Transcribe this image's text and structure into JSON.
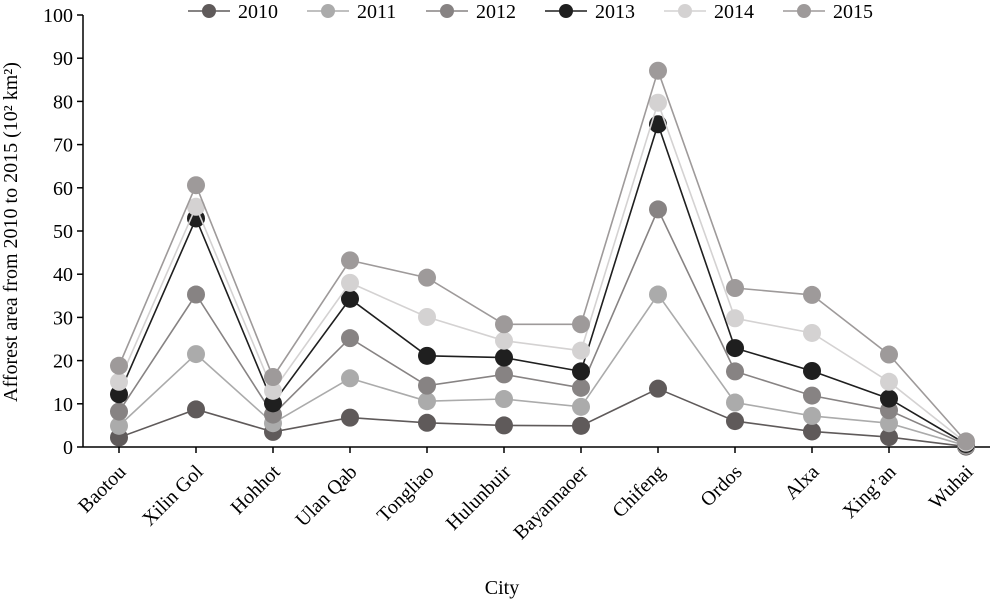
{
  "chart_data": {
    "type": "line",
    "title": "",
    "xlabel": "City",
    "ylabel": "Afforest area from 2010 to 2015 (10² km²)",
    "ylim": [
      0,
      100
    ],
    "yticks": [
      "0",
      "10",
      "20",
      "30",
      "40",
      "50",
      "60",
      "70",
      "80",
      "90",
      "100"
    ],
    "grid": false,
    "legend_position": "top",
    "categories": [
      "Baotou",
      "Xilin Gol",
      "Hohhot",
      "Ulan Qab",
      "Tongliao",
      "Hulunbuir",
      "Bayannaoer",
      "Chifeng",
      "Ordos",
      "Alxa",
      "Xing’an",
      "Wuhai"
    ],
    "series": [
      {
        "name": "2010",
        "color": "#5f5a5a",
        "values": [
          2.2,
          8.7,
          3.5,
          6.8,
          5.6,
          5.0,
          4.9,
          13.5,
          6.0,
          3.6,
          2.3,
          0.1
        ]
      },
      {
        "name": "2011",
        "color": "#ababab",
        "values": [
          4.9,
          21.5,
          5.5,
          15.9,
          10.6,
          11.1,
          9.3,
          35.3,
          10.3,
          7.2,
          5.5,
          0.3
        ]
      },
      {
        "name": "2012",
        "color": "#878383",
        "values": [
          8.2,
          35.3,
          7.5,
          25.2,
          14.2,
          16.8,
          13.7,
          55.0,
          17.5,
          11.9,
          8.5,
          0.5
        ]
      },
      {
        "name": "2013",
        "color": "#1f1f1f",
        "values": [
          12.2,
          52.9,
          10.1,
          34.3,
          21.1,
          20.7,
          17.5,
          74.7,
          22.9,
          17.6,
          11.2,
          0.7
        ]
      },
      {
        "name": "2014",
        "color": "#d4d2d2",
        "values": [
          15.1,
          55.6,
          13.0,
          38.0,
          30.1,
          24.6,
          22.3,
          79.7,
          29.8,
          26.4,
          15.1,
          1.0
        ]
      },
      {
        "name": "2015",
        "color": "#9e9a9a",
        "values": [
          18.8,
          60.6,
          16.2,
          43.2,
          39.2,
          28.4,
          28.4,
          87.1,
          36.8,
          35.2,
          21.4,
          1.3
        ]
      }
    ]
  }
}
